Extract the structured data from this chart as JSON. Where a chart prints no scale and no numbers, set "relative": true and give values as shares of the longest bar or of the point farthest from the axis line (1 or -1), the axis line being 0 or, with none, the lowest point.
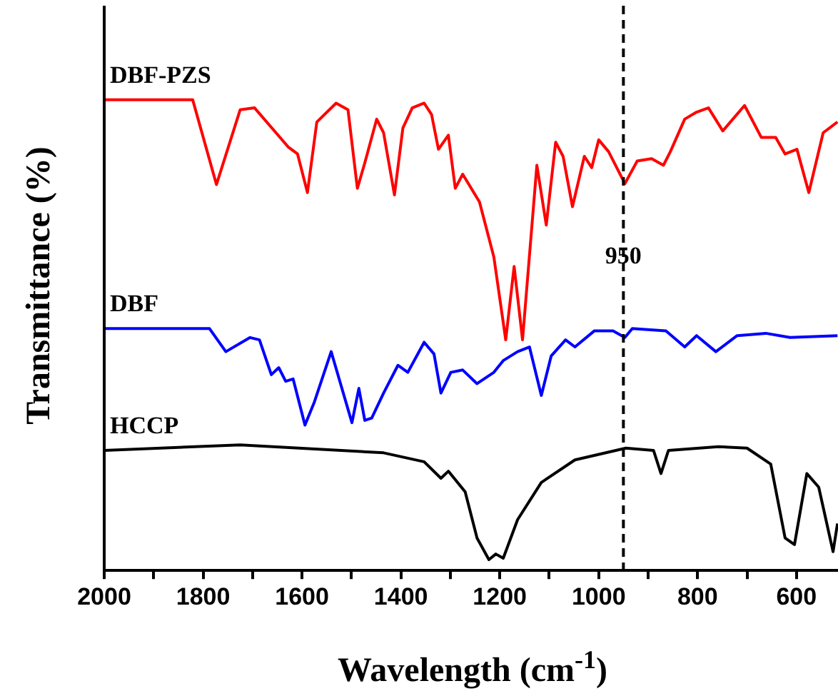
{
  "chart_data": {
    "type": "line",
    "relative": true,
    "xlabel": "Wavelength (cm$^{-1}$)",
    "ylabel": "Transmittance (%)",
    "xlim": [
      2000,
      516
    ],
    "xticks": [
      2000,
      {
        "value": 1900,
        "label": null
      },
      1800,
      {
        "value": 1700,
        "label": null
      },
      1600,
      {
        "value": 1500,
        "label": null
      },
      1400,
      {
        "value": 1300,
        "label": null
      },
      1200,
      {
        "value": 1100,
        "label": null
      },
      1000,
      {
        "value": 900,
        "label": null
      },
      800,
      {
        "value": 700,
        "label": null
      },
      600
    ],
    "grid": false,
    "legend": false,
    "marker": "none",
    "line_style": "solid",
    "ref_lines": [
      {
        "axis": "x",
        "value": 950,
        "color": "#000000",
        "line_style": "dashed"
      }
    ],
    "annotations": [
      {
        "text": "950",
        "x": 950,
        "y": 0.666
      }
    ],
    "series": [
      {
        "name": "DBF-PZS",
        "color": "#ff0000",
        "x": [
          2000,
          1821,
          1773,
          1725,
          1696,
          1628,
          1609,
          1589,
          1570,
          1531,
          1507,
          1488,
          1473,
          1449,
          1435,
          1413,
          1396,
          1377,
          1353,
          1338,
          1324,
          1304,
          1290,
          1275,
          1241,
          1212,
          1188,
          1171,
          1154,
          1125,
          1106,
          1087,
          1072,
          1053,
          1029,
          1014,
          1000,
          980,
          947,
          922,
          893,
          869,
          855,
          826,
          802,
          778,
          749,
          705,
          671,
          642,
          623,
          599,
          575,
          546,
          517
        ],
        "values": [
          1.0,
          1.0,
          0.82,
          0.979,
          0.983,
          0.9,
          0.885,
          0.803,
          0.953,
          0.993,
          0.979,
          0.812,
          0.866,
          0.959,
          0.93,
          0.798,
          0.94,
          0.983,
          0.993,
          0.969,
          0.895,
          0.925,
          0.812,
          0.842,
          0.783,
          0.666,
          0.49,
          0.646,
          0.49,
          0.861,
          0.734,
          0.91,
          0.88,
          0.773,
          0.88,
          0.856,
          0.915,
          0.89,
          0.822,
          0.87,
          0.875,
          0.861,
          0.89,
          0.959,
          0.974,
          0.983,
          0.934,
          0.988,
          0.92,
          0.92,
          0.885,
          0.895,
          0.803,
          0.93,
          0.953
        ]
      },
      {
        "name": "DBF",
        "color": "#0000ff",
        "x": [
          2000,
          1787,
          1754,
          1705,
          1686,
          1662,
          1647,
          1633,
          1618,
          1594,
          1575,
          1541,
          1499,
          1485,
          1473,
          1459,
          1435,
          1406,
          1386,
          1353,
          1333,
          1319,
          1299,
          1275,
          1246,
          1212,
          1193,
          1164,
          1140,
          1116,
          1096,
          1067,
          1048,
          1009,
          971,
          947,
          932,
          864,
          826,
          802,
          763,
          720,
          662,
          613,
          517
        ],
        "values": [
          0.514,
          0.514,
          0.465,
          0.495,
          0.49,
          0.416,
          0.431,
          0.402,
          0.407,
          0.309,
          0.358,
          0.465,
          0.314,
          0.387,
          0.319,
          0.324,
          0.377,
          0.436,
          0.421,
          0.485,
          0.46,
          0.377,
          0.421,
          0.426,
          0.397,
          0.421,
          0.446,
          0.465,
          0.475,
          0.372,
          0.456,
          0.49,
          0.475,
          0.509,
          0.509,
          0.495,
          0.514,
          0.509,
          0.475,
          0.499,
          0.465,
          0.499,
          0.504,
          0.495,
          0.499
        ]
      },
      {
        "name": "HCCP",
        "color": "#000000",
        "x": [
          2000,
          1725,
          1435,
          1353,
          1319,
          1304,
          1270,
          1246,
          1222,
          1208,
          1193,
          1164,
          1116,
          1048,
          945,
          889,
          874,
          859,
          758,
          700,
          652,
          623,
          604,
          579,
          555,
          526,
          517
        ],
        "values": [
          0.255,
          0.267,
          0.25,
          0.231,
          0.196,
          0.211,
          0.167,
          0.069,
          0.023,
          0.035,
          0.026,
          0.108,
          0.187,
          0.235,
          0.26,
          0.255,
          0.206,
          0.255,
          0.263,
          0.26,
          0.226,
          0.069,
          0.055,
          0.206,
          0.177,
          0.04,
          0.1
        ]
      }
    ]
  }
}
